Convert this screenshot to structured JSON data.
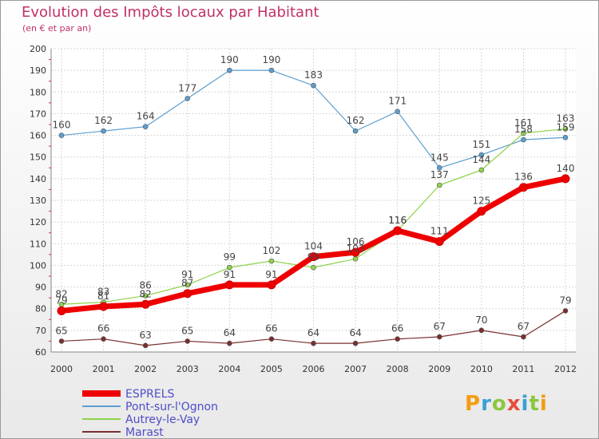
{
  "title": "Evolution des Impôts locaux par Habitant",
  "subtitle": "(en € et par an)",
  "logo": {
    "text": "Proxiti",
    "colors": [
      "#f39c12",
      "#3aa0d8",
      "#8cc63f",
      "#e74c3c",
      "#3aa0d8",
      "#8cc63f",
      "#f39c12"
    ]
  },
  "chart_data": {
    "type": "line",
    "x": [
      2000,
      2001,
      2002,
      2003,
      2004,
      2005,
      2006,
      2007,
      2008,
      2009,
      2010,
      2011,
      2012
    ],
    "ylim": [
      60,
      200
    ],
    "yticks": [
      60,
      70,
      80,
      90,
      100,
      110,
      120,
      130,
      140,
      150,
      160,
      170,
      180,
      190,
      200
    ],
    "grid": true,
    "legend_position": "bottom-left",
    "series": [
      {
        "name": "ESPRELS",
        "color": "#ee0000",
        "values": [
          79,
          81,
          82,
          87,
          91,
          91,
          104,
          106,
          116,
          111,
          125,
          136,
          140
        ]
      },
      {
        "name": "Pont-sur-l'Ognon",
        "color": "#5c9ed0",
        "values": [
          160,
          162,
          164,
          177,
          190,
          190,
          183,
          162,
          171,
          145,
          151,
          158,
          159
        ]
      },
      {
        "name": "Autrey-le-Vay",
        "color": "#8ed34a",
        "values": [
          82,
          83,
          86,
          91,
          99,
          102,
          99,
          103,
          116,
          137,
          144,
          161,
          163
        ]
      },
      {
        "name": "Marast",
        "color": "#7a2f2f",
        "values": [
          65,
          66,
          63,
          65,
          64,
          66,
          64,
          64,
          66,
          67,
          70,
          67,
          79
        ]
      }
    ]
  }
}
